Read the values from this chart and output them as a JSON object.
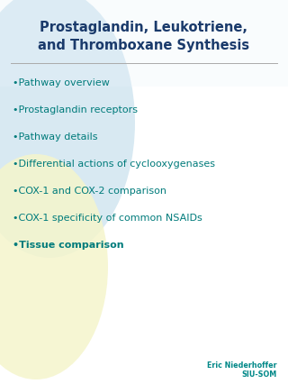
{
  "title_line1": "Prostaglandin, Leukotriene,",
  "title_line2": "and Thromboxane Synthesis",
  "title_color": "#1a3a6b",
  "bullet_color": "#007b7b",
  "bullet_items": [
    "Pathway overview",
    "Prostaglandin receptors",
    "Pathway details",
    "Differential actions of cyclooxygenases",
    "COX-1 and COX-2 comparison",
    "COX-1 specificity of common NSAIDs",
    "Tissue comparison"
  ],
  "background_color": "#ffffff",
  "circle_color_blue": "#b8d8e8",
  "circle_color_yellow": "#f5f5cc",
  "footer_text1": "Eric Niederhoffer",
  "footer_text2": "SIU-SOM",
  "footer_color": "#008888",
  "separator_color": "#aaaaaa",
  "title_bg_color": "#eaf4fb"
}
